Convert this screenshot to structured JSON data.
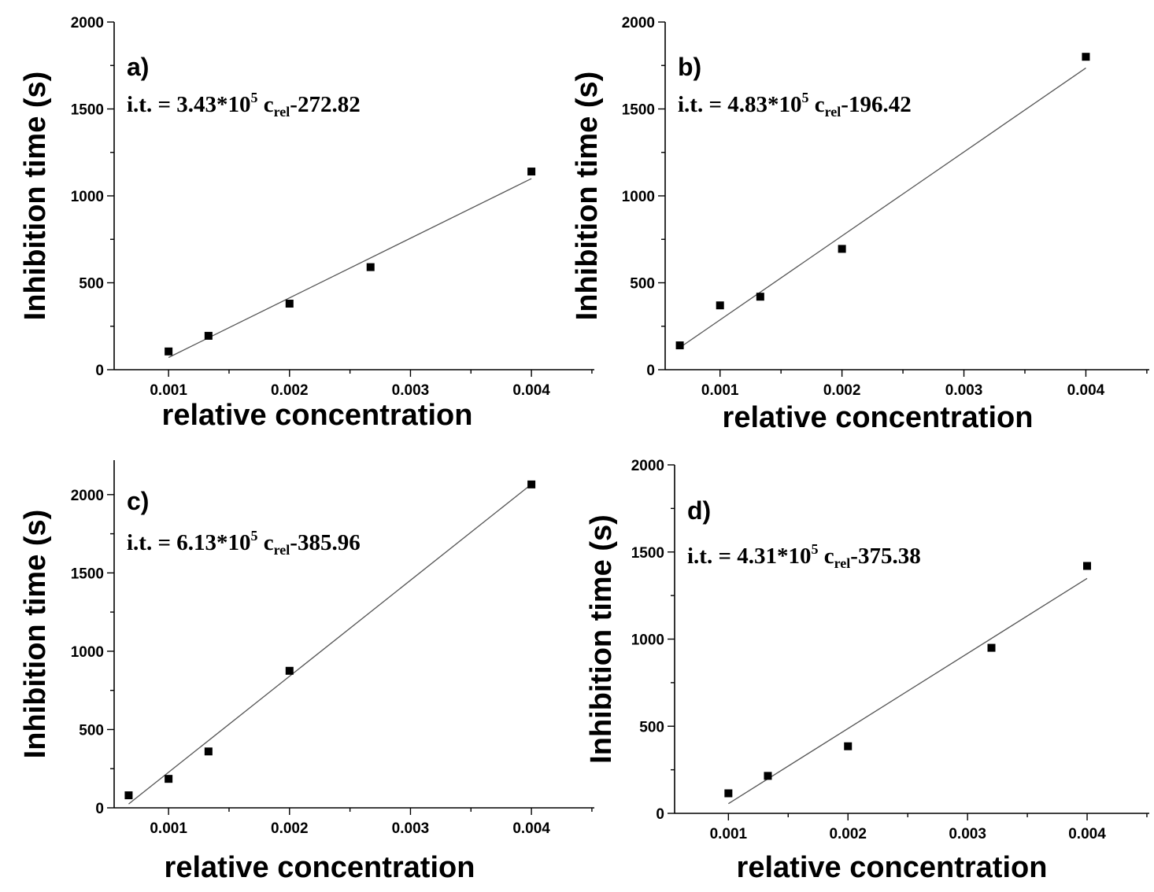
{
  "chart_data": [
    {
      "type": "scatter",
      "panel": "a)",
      "equation": {
        "prefix": "i.t. = 3.43*10",
        "sup": "5",
        "var": " c",
        "sub": "rel",
        "suffix": "-272.82"
      },
      "xlabel": "relative concentration",
      "ylabel": "Inhibition time (s)",
      "xlim": [
        0.00055,
        0.00452
      ],
      "ylim": [
        0,
        2000
      ],
      "xticks": [
        "0.001",
        "0.002",
        "0.003",
        "0.004"
      ],
      "yticks": [
        "0",
        "500",
        "1000",
        "1500",
        "2000"
      ],
      "points": {
        "x": [
          0.001,
          0.00133,
          0.002,
          0.00267,
          0.004
        ],
        "y": [
          105,
          195,
          380,
          590,
          1140
        ]
      },
      "fit": {
        "slope": 343000,
        "intercept": -272.82,
        "x": [
          0.001,
          0.004
        ]
      }
    },
    {
      "type": "scatter",
      "panel": "b)",
      "equation": {
        "prefix": "i.t. = 4.83*10",
        "sup": "5",
        "var": " c",
        "sub": "rel",
        "suffix": "-196.42"
      },
      "xlabel": "relative concentration",
      "ylabel": "Inhibition time (s)",
      "xlim": [
        0.00055,
        0.00452
      ],
      "ylim": [
        0,
        2000
      ],
      "xticks": [
        "0.001",
        "0.002",
        "0.003",
        "0.004"
      ],
      "yticks": [
        "0",
        "500",
        "1000",
        "1500",
        "2000"
      ],
      "points": {
        "x": [
          0.00067,
          0.001,
          0.00133,
          0.002,
          0.004
        ],
        "y": [
          140,
          370,
          420,
          695,
          1800
        ]
      },
      "fit": {
        "slope": 483000,
        "intercept": -196.42,
        "x": [
          0.00067,
          0.004
        ]
      }
    },
    {
      "type": "scatter",
      "panel": "c)",
      "equation": {
        "prefix": "i.t. = 6.13*10",
        "sup": "5",
        "var": " c",
        "sub": "rel",
        "suffix": "-385.96"
      },
      "xlabel": "relative concentration",
      "ylabel": "Inhibition time (s)",
      "xlim": [
        0.00055,
        0.00452
      ],
      "ylim": [
        0,
        2220
      ],
      "xticks": [
        "0.001",
        "0.002",
        "0.003",
        "0.004"
      ],
      "yticks": [
        "0",
        "500",
        "1000",
        "1500",
        "2000"
      ],
      "points": {
        "x": [
          0.00067,
          0.001,
          0.00133,
          0.002,
          0.004
        ],
        "y": [
          80,
          185,
          360,
          875,
          2065
        ]
      },
      "fit": {
        "slope": 613000,
        "intercept": -385.96,
        "x": [
          0.00067,
          0.004
        ]
      }
    },
    {
      "type": "scatter",
      "panel": "d)",
      "equation": {
        "prefix": "i.t. = 4.31*10",
        "sup": "5",
        "var": " c",
        "sub": "rel",
        "suffix": "-375.38"
      },
      "xlabel": "relative concentration",
      "ylabel": "Inhibition time (s)",
      "xlim": [
        0.00055,
        0.00452
      ],
      "ylim": [
        0,
        2000
      ],
      "xticks": [
        "0.001",
        "0.002",
        "0.003",
        "0.004"
      ],
      "yticks": [
        "0",
        "500",
        "1000",
        "1500",
        "2000"
      ],
      "points": {
        "x": [
          0.001,
          0.00133,
          0.002,
          0.0032,
          0.004
        ],
        "y": [
          115,
          215,
          385,
          950,
          1420
        ]
      },
      "fit": {
        "slope": 431000,
        "intercept": -375.38,
        "x": [
          0.001,
          0.004
        ]
      }
    }
  ]
}
